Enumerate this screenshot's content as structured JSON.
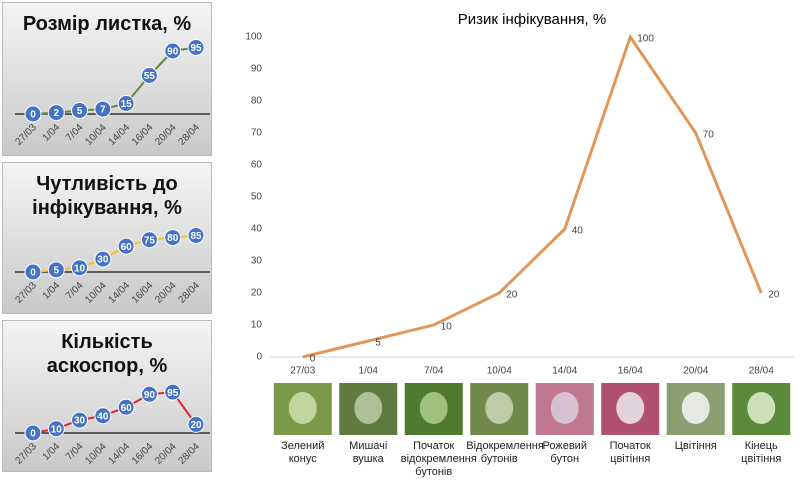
{
  "chart_data": [
    {
      "type": "line",
      "title": "Розмір листка, %",
      "categories": [
        "27/03",
        "1/04",
        "7/04",
        "10/04",
        "14/04",
        "16/04",
        "20/04",
        "28/04"
      ],
      "values": [
        0,
        2,
        5,
        7,
        15,
        55,
        90,
        95
      ],
      "color": "#5b8c3a",
      "marker_color": "#4472c4",
      "ylim": [
        0,
        100
      ]
    },
    {
      "type": "line",
      "title": "Чутливість до інфікування, %",
      "categories": [
        "27/03",
        "1/04",
        "7/04",
        "10/04",
        "14/04",
        "16/04",
        "20/04",
        "28/04"
      ],
      "values": [
        0,
        5,
        10,
        30,
        60,
        75,
        80,
        85
      ],
      "color": "#f2c232",
      "marker_color": "#4472c4",
      "ylim": [
        0,
        100
      ]
    },
    {
      "type": "line",
      "title": "Кількість аскоспор, %",
      "categories": [
        "27/03",
        "1/04",
        "7/04",
        "10/04",
        "14/04",
        "16/04",
        "20/04",
        "28/04"
      ],
      "values": [
        0,
        10,
        30,
        40,
        60,
        90,
        95,
        20
      ],
      "color": "#e02424",
      "marker_color": "#4472c4",
      "ylim": [
        0,
        100
      ]
    },
    {
      "type": "line",
      "title": "Ризик інфікування, %",
      "categories": [
        "27/03",
        "1/04",
        "7/04",
        "10/04",
        "14/04",
        "16/04",
        "20/04",
        "28/04"
      ],
      "values": [
        0,
        5,
        10,
        20,
        40,
        100,
        70,
        20
      ],
      "color": "#e0975c",
      "ylim": [
        0,
        100
      ],
      "yticks": [
        0,
        10,
        20,
        30,
        40,
        50,
        60,
        70,
        80,
        90,
        100
      ]
    }
  ],
  "stages": [
    "Зелений конус",
    "Мишачі вушка",
    "Початок відокремлення бутонів",
    "Відокремлення бутонів",
    "Рожевий бутон",
    "Початок цвітіння",
    "Цвітіння",
    "Кінець цвітіння"
  ]
}
